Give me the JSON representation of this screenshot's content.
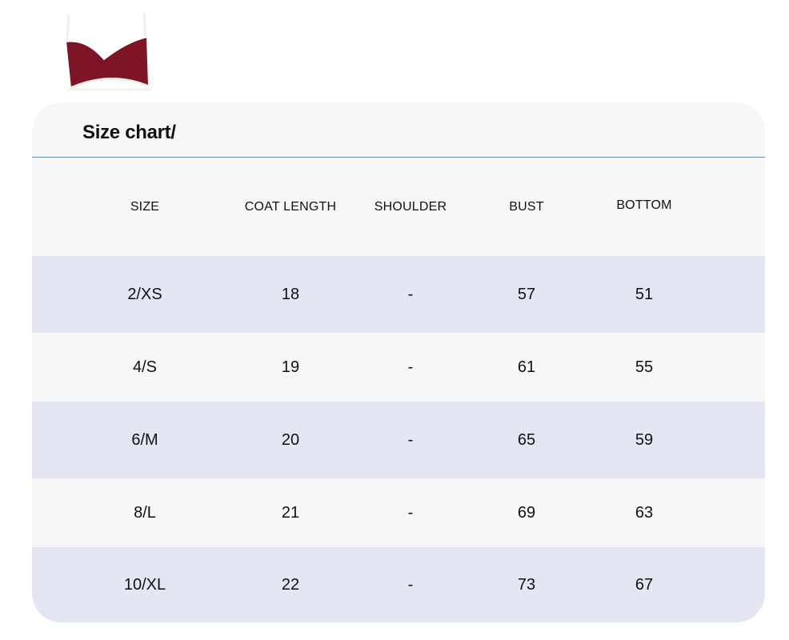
{
  "title": "Size chart/",
  "colors": {
    "band": "#e4e6f4",
    "light": "#f7f7f7",
    "divider": "#6a8fae",
    "product": "#7d1527"
  },
  "product_image": "maroon-bralette-icon",
  "headers": [
    "SIZE",
    "COAT LENGTH",
    "SHOULDER",
    "BUST",
    "BOTTOM"
  ],
  "rows": [
    [
      "2/XS",
      "18",
      "-",
      "57",
      "51"
    ],
    [
      "4/S",
      "19",
      "-",
      "61",
      "55"
    ],
    [
      "6/M",
      "20",
      "-",
      "65",
      "59"
    ],
    [
      "8/L",
      "21",
      "-",
      "69",
      "63"
    ],
    [
      "10/XL",
      "22",
      "-",
      "73",
      "67"
    ]
  ]
}
